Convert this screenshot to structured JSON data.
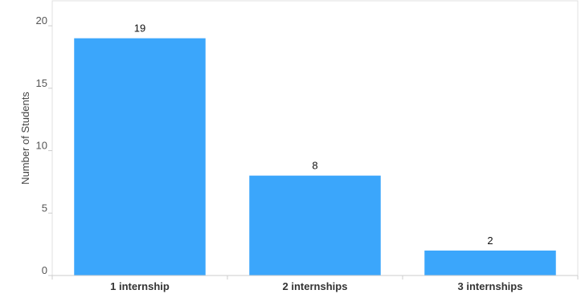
{
  "chart_data": {
    "type": "bar",
    "categories": [
      "1 internship",
      "2 internships",
      "3 internships"
    ],
    "values": [
      19,
      8,
      2
    ],
    "data_labels": [
      "19",
      "8",
      "2"
    ],
    "ylabel": "Number of Students",
    "xlabel": "",
    "ylim": [
      0,
      22
    ],
    "yticks": [
      0,
      5,
      10,
      15,
      20
    ],
    "ytick_labels": [
      "0",
      "5",
      "10",
      "15",
      "20"
    ],
    "grid": false,
    "colors": {
      "bar": "#3ba6fb",
      "axis": "#cccccc",
      "frame": "#e0e0e0"
    }
  }
}
